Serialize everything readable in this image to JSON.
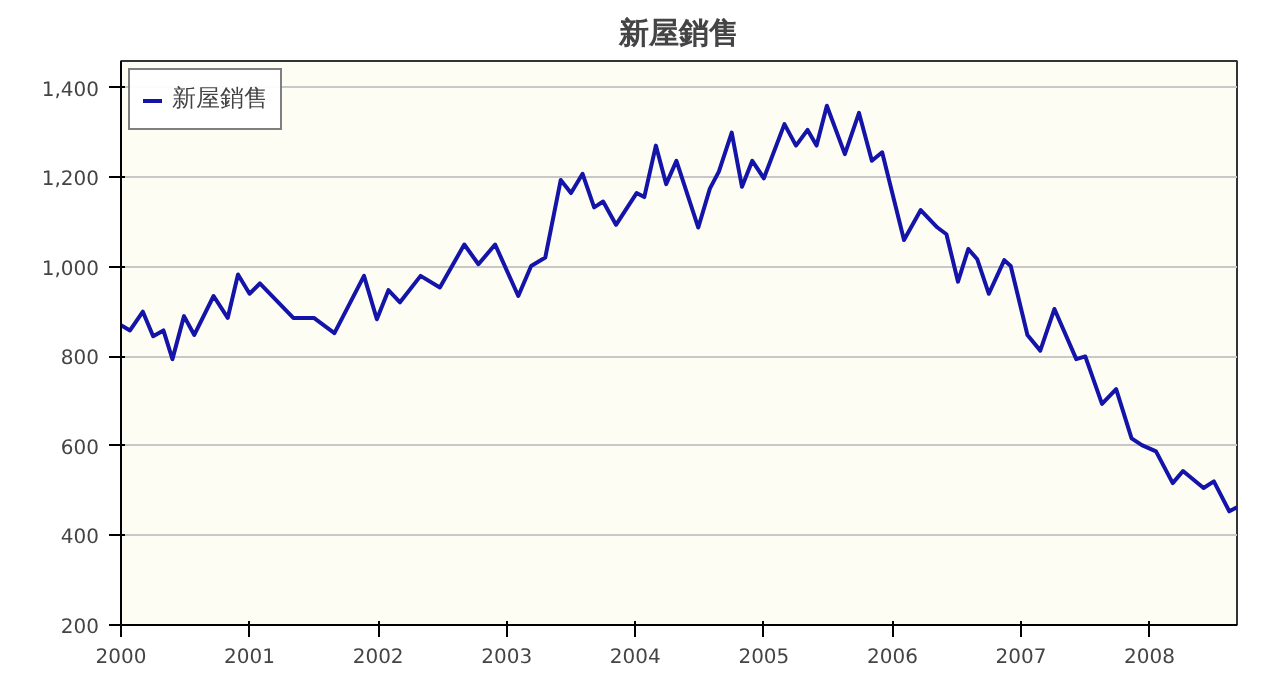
{
  "chart_data": {
    "type": "line",
    "title": "新屋銷售",
    "legend": "top left",
    "grid": "y",
    "marker": "none",
    "line_style": "solid",
    "xlim": [
      2000,
      2008.68
    ],
    "xticks": [
      2000,
      2001,
      2002,
      2003,
      2004,
      2005,
      2006,
      2007,
      2008
    ],
    "ylim": [
      200,
      1460
    ],
    "yticks": [
      {
        "value": 200,
        "label": "200"
      },
      {
        "value": 400,
        "label": "400"
      },
      {
        "value": 600,
        "label": "600"
      },
      {
        "value": 800,
        "label": "800"
      },
      {
        "value": 1000,
        "label": "1,000"
      },
      {
        "value": 1200,
        "label": "1,200"
      },
      {
        "value": 1400,
        "label": "1,400"
      }
    ],
    "series": [
      {
        "name": "新屋銷售",
        "color": "#1414a8",
        "x": [
          2000.0,
          2000.07,
          2000.17,
          2000.25,
          2000.33,
          2000.4,
          2000.49,
          2000.57,
          2000.72,
          2000.83,
          2000.91,
          2001.0,
          2001.08,
          2001.34,
          2001.5,
          2001.66,
          2001.89,
          2001.99,
          2002.08,
          2002.17,
          2002.33,
          2002.48,
          2002.67,
          2002.78,
          2002.91,
          2003.09,
          2003.19,
          2003.3,
          2003.42,
          2003.5,
          2003.59,
          2003.68,
          2003.75,
          2003.85,
          2004.01,
          2004.07,
          2004.16,
          2004.24,
          2004.32,
          2004.49,
          2004.58,
          2004.65,
          2004.75,
          2004.83,
          2004.91,
          2005.0,
          2005.16,
          2005.25,
          2005.34,
          2005.41,
          2005.49,
          2005.63,
          2005.74,
          2005.84,
          2005.92,
          2006.09,
          2006.22,
          2006.35,
          2006.42,
          2006.51,
          2006.59,
          2006.66,
          2006.75,
          2006.87,
          2006.92,
          2007.05,
          2007.15,
          2007.26,
          2007.43,
          2007.5,
          2007.63,
          2007.74,
          2007.86,
          2007.94,
          2008.05,
          2008.18,
          2008.26,
          2008.42,
          2008.5,
          2008.62,
          2008.68
        ],
        "values": [
          870,
          858,
          900,
          845,
          858,
          794,
          890,
          848,
          935,
          886,
          983,
          940,
          963,
          886,
          886,
          852,
          980,
          883,
          948,
          921,
          980,
          954,
          1050,
          1006,
          1050,
          935,
          1002,
          1021,
          1194,
          1165,
          1208,
          1133,
          1146,
          1094,
          1165,
          1156,
          1271,
          1185,
          1237,
          1088,
          1175,
          1213,
          1300,
          1179,
          1237,
          1198,
          1319,
          1271,
          1306,
          1271,
          1360,
          1252,
          1344,
          1237,
          1256,
          1060,
          1127,
          1088,
          1073,
          967,
          1040,
          1017,
          940,
          1015,
          1002,
          848,
          813,
          906,
          794,
          800,
          694,
          727,
          617,
          602,
          588,
          517,
          544,
          506,
          521,
          454,
          463
        ]
      }
    ]
  }
}
